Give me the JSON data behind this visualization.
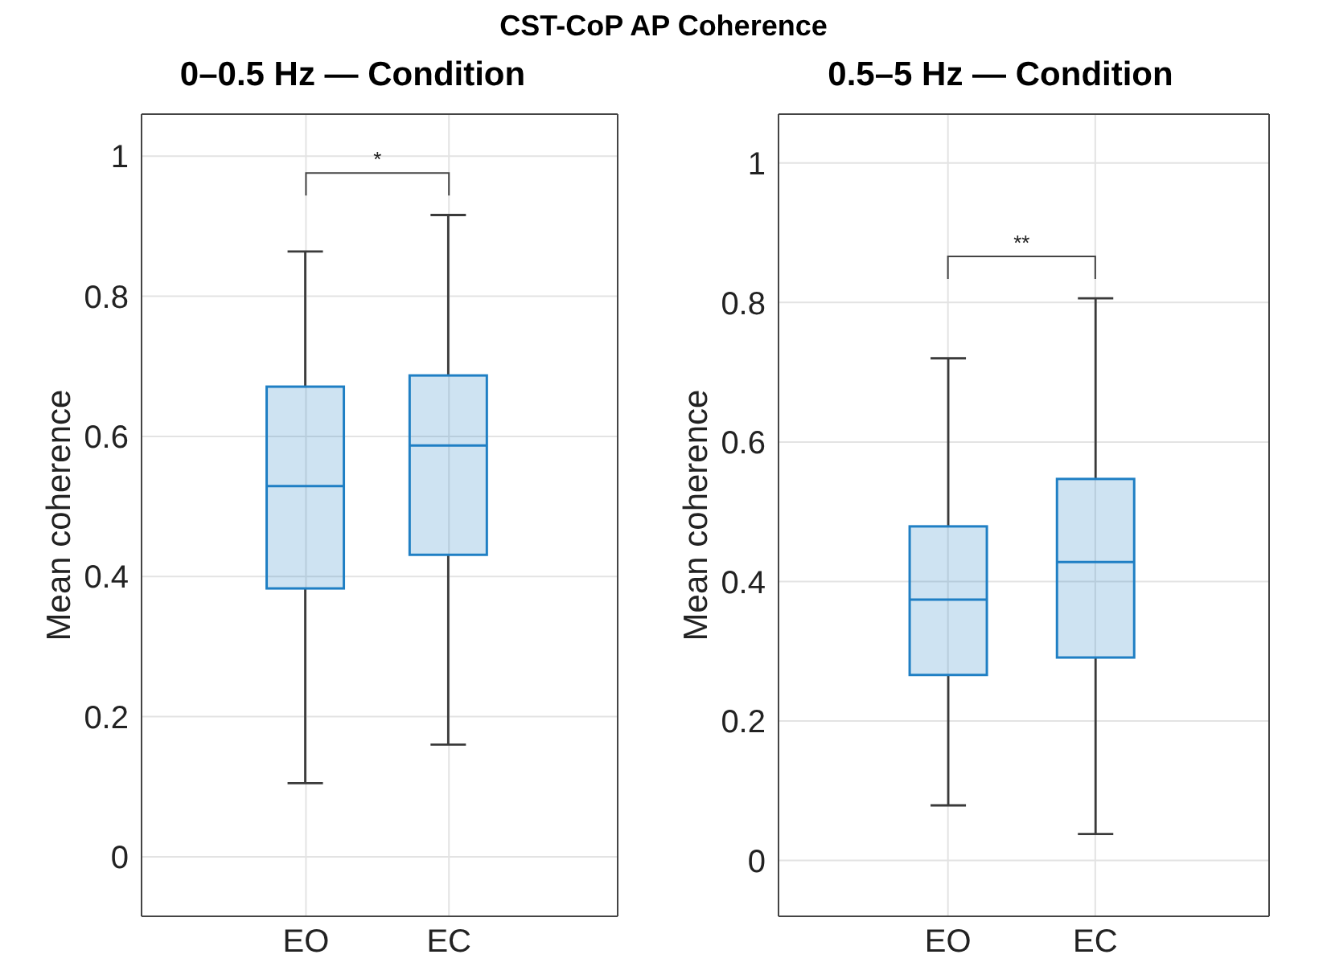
{
  "chart_data": [
    {
      "type": "other",
      "title": "CST-CoP AP Coherence"
    },
    {
      "type": "box",
      "title": "0–0.5 Hz — Condition",
      "ylabel": "Mean coherence",
      "categories": [
        "EO",
        "EC"
      ],
      "series": [
        {
          "color": "#1f7fc4",
          "boxes": [
            {
              "low": 0.105,
              "q1": 0.383,
              "median": 0.529,
              "q3": 0.671,
              "high": 0.864
            },
            {
              "low": 0.16,
              "q1": 0.431,
              "median": 0.587,
              "q3": 0.687,
              "high": 0.916
            }
          ]
        }
      ],
      "ylim": [
        -0.085,
        1.06
      ],
      "yticks": [
        0,
        0.2,
        0.4,
        0.6,
        0.8,
        1
      ],
      "grid": true,
      "annotations": [
        "*"
      ]
    },
    {
      "type": "box",
      "title": "0.5–5 Hz — Condition",
      "ylabel": "Mean coherence",
      "categories": [
        "EO",
        "EC"
      ],
      "series": [
        {
          "color": "#1f7fc4",
          "boxes": [
            {
              "low": 0.079,
              "q1": 0.266,
              "median": 0.374,
              "q3": 0.479,
              "high": 0.72
            },
            {
              "low": 0.038,
              "q1": 0.291,
              "median": 0.428,
              "q3": 0.547,
              "high": 0.806
            }
          ]
        }
      ],
      "ylim": [
        -0.08,
        1.07
      ],
      "yticks": [
        0,
        0.2,
        0.4,
        0.6,
        0.8,
        1
      ],
      "grid": true,
      "annotations": [
        "**"
      ]
    }
  ]
}
